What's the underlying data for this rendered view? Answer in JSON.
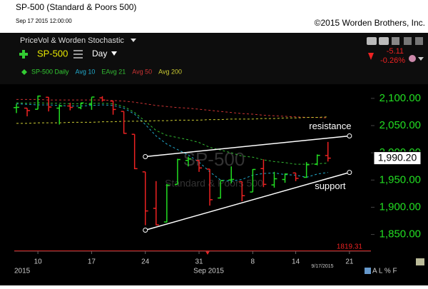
{
  "header": {
    "title": "SP-500 (Standard & Poors 500)",
    "timestamp": "Sep 17 2015 12:00:00",
    "copyright": "©2015 Worden Brothers, Inc.",
    "toolbar": "PriceVol & Worden Stochastic",
    "symbol": "SP-500",
    "period": "Day",
    "change": "-5.11",
    "change_pct": "-0.26%"
  },
  "chart_data": {
    "type": "ohlc",
    "watermark": [
      "SP-500",
      "Standard & Poors 500"
    ],
    "up_color": "#22dd22",
    "down_color": "#ee2222",
    "series": [
      {
        "name": "SP-500 Daily",
        "color": "#33cc33",
        "open": [
          2083,
          2082,
          2080,
          2102,
          2082,
          2086,
          2083,
          2089,
          2101,
          2095,
          2076,
          2034,
          1965,
          1898,
          1873,
          1942,
          1986,
          1986,
          1970,
          1917,
          1950,
          1947,
          1928,
          1971,
          1941,
          1951,
          1963,
          1955,
          1979,
          1995
        ],
        "high": [
          2090,
          2082,
          2105,
          2102,
          2089,
          2092,
          2092,
          2102,
          2104,
          2096,
          2076,
          2034,
          1965,
          1948,
          1943,
          1989,
          1993,
          1986,
          1970,
          1948,
          1975,
          1947,
          1970,
          1988,
          1965,
          1962,
          1963,
          1983,
          1997,
          2020
        ],
        "low": [
          2073,
          2067,
          2080,
          2076,
          2052,
          2078,
          2080,
          2079,
          2094,
          2070,
          2035,
          1970,
          1867,
          1867,
          1872,
          1942,
          1975,
          1965,
          1903,
          1916,
          1944,
          1911,
          1928,
          1937,
          1936,
          1945,
          1948,
          1954,
          1977,
          1984
        ],
        "close": [
          2083.56,
          2077.57,
          2104.18,
          2084.07,
          2086.05,
          2083.39,
          2091.54,
          2102.44,
          2096.92,
          2079.61,
          2035.73,
          1970.89,
          1893.21,
          1867.61,
          1940.51,
          1987.66,
          1988.87,
          1972.18,
          1913.85,
          1948.86,
          1951.13,
          1921.22,
          1969.41,
          1942.04,
          1952.29,
          1961.05,
          1953.03,
          1978.09,
          1995.31,
          1990.2
        ]
      },
      {
        "name": "Avg 10",
        "color": "#22aacc",
        "values": [
          2090,
          2089,
          2088,
          2088,
          2087,
          2086,
          2086,
          2087,
          2088,
          2087,
          2082,
          2071,
          2052,
          2031,
          2016,
          2006,
          1996,
          1983,
          1965,
          1950,
          1948,
          1951,
          1959,
          1962,
          1963,
          1960,
          1959,
          1955,
          1961,
          1964
        ]
      },
      {
        "name": "EAvg 21",
        "color": "#33bb33",
        "values": [
          2092,
          2091,
          2092,
          2091,
          2091,
          2090,
          2090,
          2091,
          2091,
          2090,
          2085,
          2074,
          2058,
          2041,
          2032,
          2028,
          2024,
          2019,
          2010,
          2005,
          2000,
          1994,
          1992,
          1987,
          1984,
          1982,
          1979,
          1979,
          1980,
          1981
        ]
      },
      {
        "name": "Avg 50",
        "color": "#cc3333",
        "values": [
          2098,
          2098,
          2098,
          2097,
          2097,
          2097,
          2097,
          2097,
          2097,
          2096,
          2095,
          2093,
          2090,
          2087,
          2085,
          2083,
          2082,
          2080,
          2078,
          2076,
          2074,
          2072,
          2071,
          2069,
          2068,
          2067,
          2066,
          2065,
          2065,
          2064
        ]
      },
      {
        "name": "Avg 200",
        "color": "#cccc33",
        "values": [
          2054,
          2054,
          2055,
          2055,
          2055,
          2056,
          2056,
          2056,
          2057,
          2057,
          2058,
          2058,
          2058,
          2059,
          2059,
          2060,
          2060,
          2060,
          2061,
          2061,
          2062,
          2062,
          2062,
          2063,
          2063,
          2064,
          2064,
          2065,
          2065,
          2066
        ]
      }
    ],
    "ylim": [
      1819.31,
      2126
    ],
    "yticks": [
      {
        "value": 1850,
        "label": "1,850.00"
      },
      {
        "value": 1900,
        "label": "1,900.00"
      },
      {
        "value": 1950,
        "label": "1,950.00"
      },
      {
        "value": 2000,
        "label": "2,000.00"
      },
      {
        "value": 2050,
        "label": "2,050.00"
      },
      {
        "value": 2100,
        "label": "2,100.00"
      }
    ],
    "last_price": {
      "value": 1990.2,
      "label": "1,990.20"
    },
    "low_marker": 1819.31,
    "xlim": [
      -0.2,
      33
    ],
    "xticks": [
      {
        "value": 2,
        "label": "10"
      },
      {
        "value": 7,
        "label": "17"
      },
      {
        "value": 12,
        "label": "24"
      },
      {
        "value": 17,
        "label": "31"
      },
      {
        "value": 22,
        "label": "8"
      },
      {
        "value": 26,
        "label": "14"
      },
      {
        "value": 31,
        "label": "21"
      }
    ],
    "x_labels": [
      "2015",
      "Sep 2015"
    ],
    "date_label": "9/17/2015",
    "annotations": [
      {
        "text": "resistance",
        "x": [
          12,
          31
        ],
        "y": [
          1993,
          2031
        ]
      },
      {
        "text": "support",
        "x": [
          12,
          31
        ],
        "y": [
          1858,
          1964
        ]
      }
    ],
    "scale_buttons": "A L % F"
  }
}
